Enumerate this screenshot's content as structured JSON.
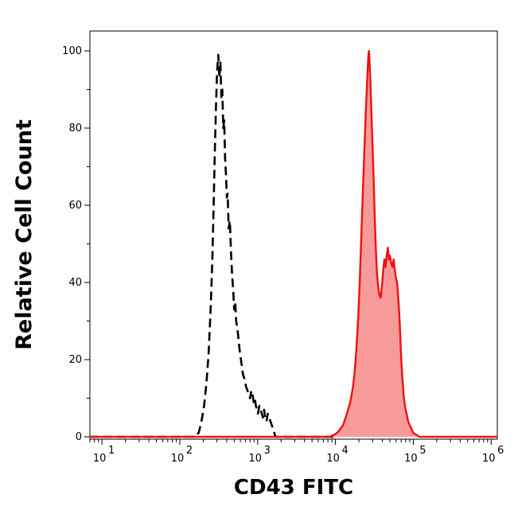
{
  "chart_data": {
    "type": "area",
    "title": "",
    "xlabel": "CD43 FITC",
    "ylabel": "Relative Cell Count",
    "x_scale": "log",
    "xlim": [
      7,
      1200000
    ],
    "ylim": [
      0,
      105
    ],
    "y_ticks": [
      0,
      20,
      40,
      60,
      80,
      100
    ],
    "y_tick_labels": [
      "0",
      "20",
      "40",
      "60",
      "80",
      "100"
    ],
    "x_ticks": [
      {
        "base": "10",
        "exp": "1",
        "value": 10
      },
      {
        "base": "10",
        "exp": "2",
        "value": 100
      },
      {
        "base": "10",
        "exp": "3",
        "value": 1000
      },
      {
        "base": "10",
        "exp": "4",
        "value": 10000
      },
      {
        "base": "10",
        "exp": "5",
        "value": 100000
      },
      {
        "base": "10",
        "exp": "6",
        "value": 1000000
      }
    ],
    "grid": false,
    "series": [
      {
        "name": "",
        "style": "dashed",
        "color": "#000000",
        "fill": "none",
        "points": [
          [
            7,
            0
          ],
          [
            80,
            0
          ],
          [
            150,
            0
          ],
          [
            175,
            1
          ],
          [
            190,
            4
          ],
          [
            205,
            8
          ],
          [
            220,
            14
          ],
          [
            235,
            22
          ],
          [
            250,
            34
          ],
          [
            262,
            46
          ],
          [
            272,
            60
          ],
          [
            282,
            74
          ],
          [
            292,
            86
          ],
          [
            302,
            95
          ],
          [
            312,
            99
          ],
          [
            322,
            93
          ],
          [
            332,
            97
          ],
          [
            342,
            88
          ],
          [
            352,
            90
          ],
          [
            362,
            80
          ],
          [
            372,
            82
          ],
          [
            382,
            72
          ],
          [
            392,
            68
          ],
          [
            402,
            62
          ],
          [
            412,
            63
          ],
          [
            425,
            54
          ],
          [
            440,
            56
          ],
          [
            455,
            48
          ],
          [
            470,
            42
          ],
          [
            485,
            38
          ],
          [
            500,
            33
          ],
          [
            515,
            35
          ],
          [
            530,
            30
          ],
          [
            550,
            28
          ],
          [
            570,
            25
          ],
          [
            590,
            22
          ],
          [
            610,
            20
          ],
          [
            630,
            18
          ],
          [
            650,
            16
          ],
          [
            680,
            15
          ],
          [
            710,
            13
          ],
          [
            740,
            12
          ],
          [
            770,
            11
          ],
          [
            800,
            10
          ],
          [
            830,
            12
          ],
          [
            860,
            11
          ],
          [
            890,
            9
          ],
          [
            920,
            10
          ],
          [
            950,
            8
          ],
          [
            980,
            7
          ],
          [
            1010,
            6
          ],
          [
            1050,
            8
          ],
          [
            1090,
            7
          ],
          [
            1130,
            6
          ],
          [
            1170,
            5
          ],
          [
            1210,
            7
          ],
          [
            1250,
            5
          ],
          [
            1300,
            4
          ],
          [
            1350,
            6
          ],
          [
            1400,
            5
          ],
          [
            1460,
            4
          ],
          [
            1520,
            3
          ],
          [
            1580,
            2
          ],
          [
            1640,
            1
          ],
          [
            1700,
            0
          ],
          [
            1800,
            0
          ],
          [
            2500,
            0
          ],
          [
            10000,
            0
          ]
        ]
      },
      {
        "name": "",
        "style": "solid",
        "color": "#ee1111",
        "fill": "#f79a9a",
        "points": [
          [
            7,
            0
          ],
          [
            6500,
            0
          ],
          [
            8500,
            0
          ],
          [
            9500,
            0.5
          ],
          [
            10500,
            1
          ],
          [
            11500,
            2
          ],
          [
            12500,
            3
          ],
          [
            13500,
            5
          ],
          [
            14500,
            7
          ],
          [
            15500,
            9
          ],
          [
            16500,
            12
          ],
          [
            17500,
            16
          ],
          [
            18500,
            22
          ],
          [
            19500,
            30
          ],
          [
            20500,
            40
          ],
          [
            21500,
            52
          ],
          [
            22500,
            64
          ],
          [
            23500,
            74
          ],
          [
            24500,
            84
          ],
          [
            25500,
            92
          ],
          [
            26500,
            99
          ],
          [
            27000,
            100
          ],
          [
            28000,
            93
          ],
          [
            29000,
            84
          ],
          [
            30000,
            75
          ],
          [
            31000,
            66
          ],
          [
            32000,
            57
          ],
          [
            33000,
            49
          ],
          [
            34000,
            43
          ],
          [
            35000,
            40
          ],
          [
            36500,
            37
          ],
          [
            38000,
            36
          ],
          [
            39500,
            39
          ],
          [
            41000,
            43
          ],
          [
            42500,
            46
          ],
          [
            44000,
            44
          ],
          [
            45500,
            47
          ],
          [
            47000,
            49
          ],
          [
            48500,
            46
          ],
          [
            50000,
            47
          ],
          [
            52000,
            45
          ],
          [
            54000,
            44
          ],
          [
            56000,
            46
          ],
          [
            58000,
            43
          ],
          [
            60000,
            41
          ],
          [
            62000,
            40
          ],
          [
            64000,
            36
          ],
          [
            66000,
            32
          ],
          [
            68000,
            26
          ],
          [
            70000,
            20
          ],
          [
            72500,
            15
          ],
          [
            75000,
            11
          ],
          [
            78000,
            8
          ],
          [
            82000,
            6
          ],
          [
            86000,
            4
          ],
          [
            90000,
            3
          ],
          [
            95000,
            2
          ],
          [
            100000,
            1
          ],
          [
            110000,
            0.5
          ],
          [
            120000,
            0
          ],
          [
            200000,
            0
          ],
          [
            1200000,
            0
          ]
        ]
      }
    ]
  }
}
